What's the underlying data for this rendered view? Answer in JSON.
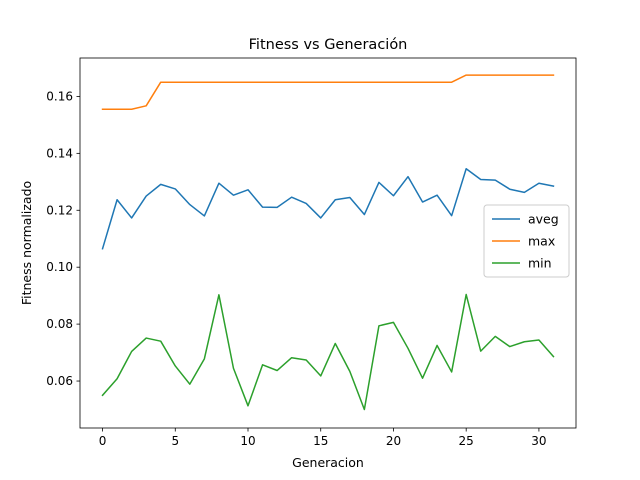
{
  "chart_data": {
    "type": "line",
    "title": "Fitness vs Generación",
    "xlabel": "Generacion",
    "ylabel": "Fitness normalizado",
    "x": [
      0,
      1,
      2,
      3,
      4,
      5,
      6,
      7,
      8,
      9,
      10,
      11,
      12,
      13,
      14,
      15,
      16,
      17,
      18,
      19,
      20,
      21,
      22,
      23,
      24,
      25,
      26,
      27,
      28,
      29,
      30,
      31
    ],
    "xlim": [
      -1.55,
      32.55
    ],
    "ylim": [
      0.0435,
      0.1735
    ],
    "xticks": [
      0,
      5,
      10,
      15,
      20,
      25,
      30
    ],
    "yticks": [
      0.06,
      0.08,
      0.1,
      0.12,
      0.14,
      0.16
    ],
    "xtick_labels": [
      "0",
      "5",
      "10",
      "15",
      "20",
      "25",
      "30"
    ],
    "ytick_labels": [
      "0.06",
      "0.08",
      "0.10",
      "0.12",
      "0.14",
      "0.16"
    ],
    "grid": false,
    "legend_position": "center-right",
    "series": [
      {
        "name": "aveg",
        "color": "#1f77b4",
        "values": [
          0.1065,
          0.1237,
          0.1173,
          0.125,
          0.1291,
          0.1275,
          0.122,
          0.118,
          0.1295,
          0.1253,
          0.1272,
          0.1211,
          0.121,
          0.1246,
          0.1224,
          0.1173,
          0.1237,
          0.1245,
          0.1185,
          0.1298,
          0.1251,
          0.1318,
          0.1229,
          0.1253,
          0.1181,
          0.1346,
          0.1308,
          0.1306,
          0.1274,
          0.1263,
          0.1295,
          0.1285
        ]
      },
      {
        "name": "max",
        "color": "#ff7f0e",
        "values": [
          0.1555,
          0.1555,
          0.1555,
          0.1567,
          0.165,
          0.165,
          0.165,
          0.165,
          0.165,
          0.165,
          0.165,
          0.165,
          0.165,
          0.165,
          0.165,
          0.165,
          0.165,
          0.165,
          0.165,
          0.165,
          0.165,
          0.165,
          0.165,
          0.165,
          0.165,
          0.1675,
          0.1675,
          0.1675,
          0.1675,
          0.1675,
          0.1675,
          0.1675
        ]
      },
      {
        "name": "min",
        "color": "#2ca02c",
        "values": [
          0.055,
          0.0608,
          0.0704,
          0.0751,
          0.074,
          0.0653,
          0.0589,
          0.0678,
          0.0903,
          0.0645,
          0.0513,
          0.0657,
          0.0637,
          0.0682,
          0.0674,
          0.0618,
          0.0732,
          0.0634,
          0.05,
          0.0794,
          0.0806,
          0.0715,
          0.061,
          0.0725,
          0.0632,
          0.0904,
          0.0705,
          0.0757,
          0.0721,
          0.0738,
          0.0744,
          0.0686
        ]
      }
    ]
  }
}
